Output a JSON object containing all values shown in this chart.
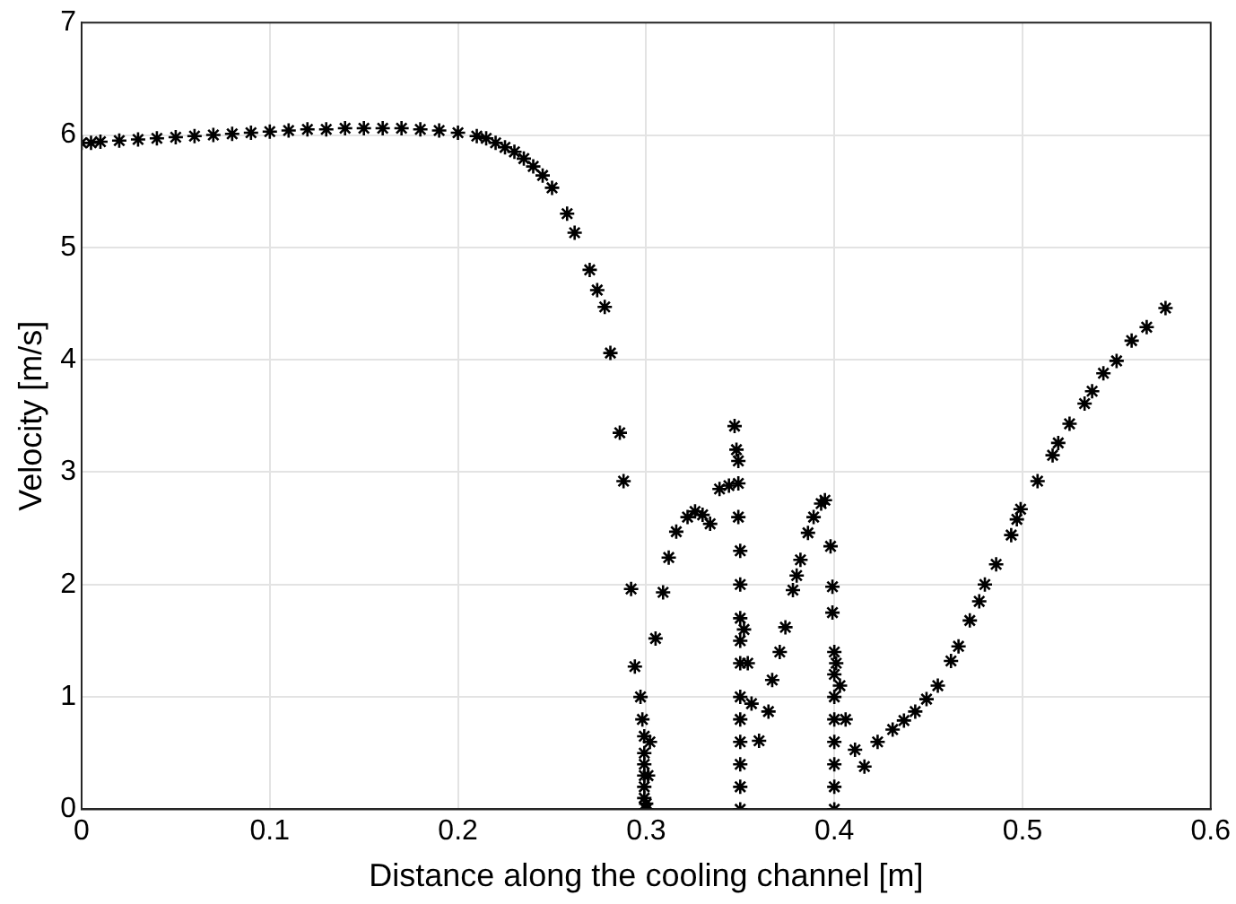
{
  "chart_data": {
    "type": "scatter",
    "xlabel": "Distance along the cooling channel [m]",
    "ylabel": "Velocity [m/s]",
    "xlim": [
      0,
      0.6
    ],
    "ylim": [
      0,
      7
    ],
    "xticks": [
      0,
      0.1,
      0.2,
      0.3,
      0.4,
      0.5,
      0.6
    ],
    "yticks": [
      0,
      1,
      2,
      3,
      4,
      5,
      6,
      7
    ],
    "grid": true,
    "legend": false,
    "marker": "cross",
    "series": [
      {
        "color": "#000000",
        "x": [
          0,
          0.005,
          0.01,
          0.02,
          0.03,
          0.04,
          0.05,
          0.06,
          0.07,
          0.08,
          0.09,
          0.1,
          0.11,
          0.12,
          0.13,
          0.14,
          0.15,
          0.16,
          0.17,
          0.18,
          0.19,
          0.2,
          0.21,
          0.215,
          0.22,
          0.225,
          0.23,
          0.235,
          0.24,
          0.245,
          0.25,
          0.258,
          0.262,
          0.27,
          0.274,
          0.278,
          0.281,
          0.286,
          0.288,
          0.292,
          0.294,
          0.297,
          0.298,
          0.299,
          0.299,
          0.299,
          0.299,
          0.299,
          0.299,
          0.3,
          0.3,
          0.301,
          0.302,
          0.305,
          0.309,
          0.312,
          0.316,
          0.322,
          0.326,
          0.33,
          0.334,
          0.339,
          0.344,
          0.347,
          0.348,
          0.349,
          0.349,
          0.349,
          0.35,
          0.35,
          0.35,
          0.35,
          0.35,
          0.35,
          0.35,
          0.35,
          0.35,
          0.35,
          0.35,
          0.352,
          0.354,
          0.356,
          0.36,
          0.365,
          0.367,
          0.371,
          0.374,
          0.378,
          0.38,
          0.382,
          0.386,
          0.389,
          0.393,
          0.395,
          0.398,
          0.399,
          0.399,
          0.4,
          0.4,
          0.4,
          0.4,
          0.4,
          0.4,
          0.4,
          0.4,
          0.401,
          0.403,
          0.406,
          0.411,
          0.416,
          0.423,
          0.431,
          0.437,
          0.443,
          0.449,
          0.455,
          0.462,
          0.466,
          0.472,
          0.477,
          0.48,
          0.486,
          0.494,
          0.497,
          0.499,
          0.508,
          0.516,
          0.519,
          0.525,
          0.533,
          0.537,
          0.543,
          0.55,
          0.558,
          0.566,
          0.576
        ],
        "values": [
          5.93,
          5.93,
          5.94,
          5.95,
          5.96,
          5.97,
          5.98,
          5.99,
          6.0,
          6.01,
          6.02,
          6.03,
          6.04,
          6.05,
          6.05,
          6.06,
          6.06,
          6.06,
          6.06,
          6.05,
          6.04,
          6.02,
          5.99,
          5.97,
          5.93,
          5.89,
          5.85,
          5.79,
          5.72,
          5.64,
          5.53,
          5.3,
          5.13,
          4.8,
          4.62,
          4.47,
          4.06,
          3.35,
          2.92,
          1.96,
          1.27,
          1.0,
          0.8,
          0.65,
          0.5,
          0.4,
          0.3,
          0.2,
          0.1,
          0.0,
          0.05,
          0.3,
          0.6,
          1.52,
          1.93,
          2.24,
          2.47,
          2.6,
          2.65,
          2.62,
          2.54,
          2.85,
          2.88,
          3.41,
          3.2,
          3.1,
          2.9,
          2.6,
          2.3,
          2.0,
          1.7,
          1.5,
          1.3,
          1.0,
          0.8,
          0.6,
          0.4,
          0.2,
          0.0,
          1.6,
          1.3,
          0.94,
          0.61,
          0.87,
          1.15,
          1.4,
          1.62,
          1.95,
          2.08,
          2.22,
          2.46,
          2.6,
          2.72,
          2.75,
          2.34,
          1.98,
          1.75,
          1.4,
          1.2,
          1.0,
          0.8,
          0.6,
          0.4,
          0.2,
          0.0,
          1.3,
          1.1,
          0.8,
          0.53,
          0.38,
          0.6,
          0.71,
          0.79,
          0.87,
          0.98,
          1.1,
          1.32,
          1.45,
          1.68,
          1.85,
          2.0,
          2.18,
          2.44,
          2.58,
          2.67,
          2.92,
          3.15,
          3.26,
          3.43,
          3.61,
          3.72,
          3.88,
          3.99,
          4.17,
          4.29,
          4.46
        ]
      }
    ]
  }
}
